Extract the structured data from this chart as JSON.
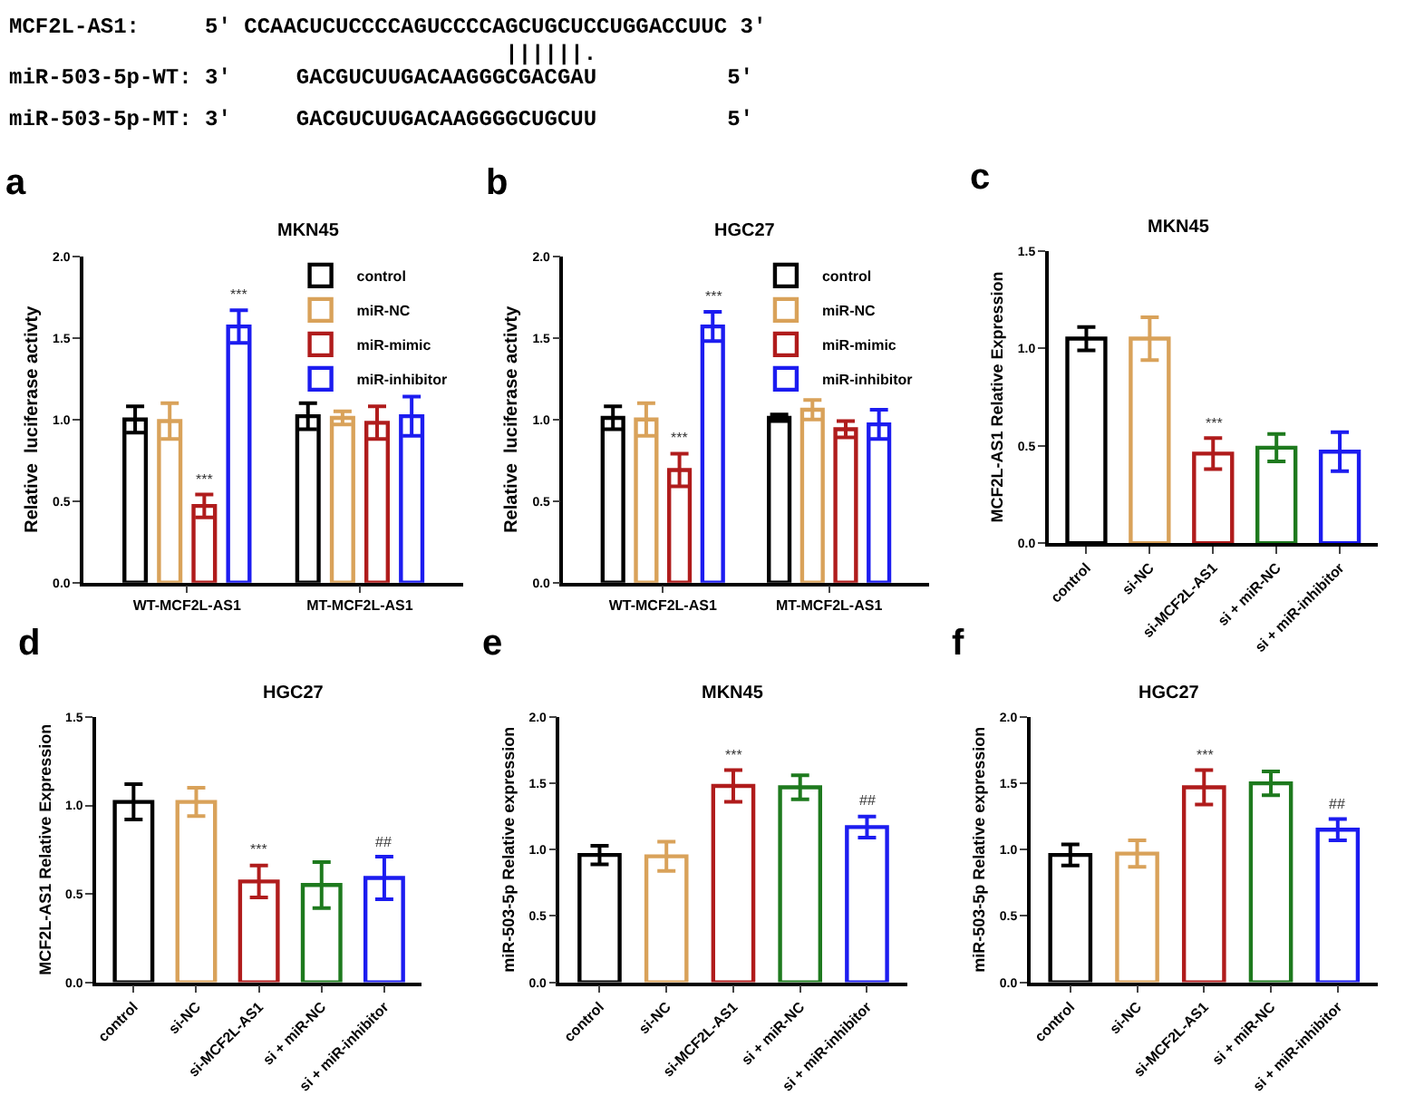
{
  "chart_data": [
    {
      "type": "other",
      "annotations": [
        "MCF2L-AS1:     5' CCAACUCUCCCCAGUCCCCAGCUGCUCCUGGACCUUC 3'",
        "                                      ||||||.",
        "miR-503-5p-WT: 3'     GACGUCUUGACAAGGGCGACGAU          5'",
        "miR-503-5p-MT: 3'     GACGUCUUGACAAGGGGCUGCUU          5'"
      ]
    },
    {
      "type": "bar",
      "title": "MKN45",
      "ylabel": "Relative  luciferase activty",
      "annotations": [
        "a"
      ],
      "categories": [
        "WT-MCF2L-AS1",
        "MT-MCF2L-AS1"
      ],
      "ylim": [
        0,
        2
      ],
      "yticks": [
        {
          "value": 0,
          "label": "0.0"
        },
        {
          "value": 0.5,
          "label": "0.5"
        },
        {
          "value": 1,
          "label": "1.0"
        },
        {
          "value": 1.5,
          "label": "1.5"
        },
        {
          "value": 2,
          "label": "2.0"
        }
      ],
      "legend": "top right",
      "series": [
        {
          "name": "control",
          "color": "#000000",
          "values": [
            1.0,
            1.02
          ],
          "errors": [
            0.08,
            0.08
          ],
          "value_labels": [
            null,
            null
          ]
        },
        {
          "name": "miR-NC",
          "color": "#d9a25a",
          "values": [
            0.99,
            1.01
          ],
          "errors": [
            0.11,
            0.04
          ],
          "value_labels": [
            null,
            null
          ]
        },
        {
          "name": "miR-mimic",
          "color": "#b01c1c",
          "values": [
            0.47,
            0.98
          ],
          "errors": [
            0.07,
            0.1
          ],
          "value_labels": [
            "***",
            null
          ]
        },
        {
          "name": "miR-inhibitor",
          "color": "#1c1cf0",
          "values": [
            1.57,
            1.02
          ],
          "errors": [
            0.1,
            0.12
          ],
          "value_labels": [
            "***",
            null
          ]
        }
      ]
    },
    {
      "type": "bar",
      "title": "HGC27",
      "ylabel": "Relative  luciferase activty",
      "annotations": [
        "b"
      ],
      "categories": [
        "WT-MCF2L-AS1",
        "MT-MCF2L-AS1"
      ],
      "ylim": [
        0,
        2
      ],
      "yticks": [
        {
          "value": 0,
          "label": "0.0"
        },
        {
          "value": 0.5,
          "label": "0.5"
        },
        {
          "value": 1,
          "label": "1.0"
        },
        {
          "value": 1.5,
          "label": "1.5"
        },
        {
          "value": 2,
          "label": "2.0"
        }
      ],
      "legend": "top right",
      "series": [
        {
          "name": "control",
          "color": "#000000",
          "values": [
            1.01,
            1.01
          ],
          "errors": [
            0.07,
            0.02
          ],
          "value_labels": [
            null,
            null
          ]
        },
        {
          "name": "miR-NC",
          "color": "#d9a25a",
          "values": [
            1.0,
            1.06
          ],
          "errors": [
            0.1,
            0.06
          ],
          "value_labels": [
            null,
            null
          ]
        },
        {
          "name": "miR-mimic",
          "color": "#b01c1c",
          "values": [
            0.69,
            0.94
          ],
          "errors": [
            0.1,
            0.05
          ],
          "value_labels": [
            "***",
            null
          ]
        },
        {
          "name": "miR-inhibitor",
          "color": "#1c1cf0",
          "values": [
            1.57,
            0.97
          ],
          "errors": [
            0.09,
            0.09
          ],
          "value_labels": [
            "***",
            null
          ]
        }
      ]
    },
    {
      "type": "bar",
      "title": "MKN45",
      "ylabel": "MCF2L-AS1 Relative Expression",
      "annotations": [
        "c"
      ],
      "categories": [
        "control",
        "si-NC",
        "si-MCF2L-AS1",
        "si + miR-NC",
        "si + miR-inhibitor"
      ],
      "ylim": [
        0,
        1.5
      ],
      "yticks": [
        {
          "value": 0,
          "label": "0.0"
        },
        {
          "value": 0.5,
          "label": "0.5"
        },
        {
          "value": 1,
          "label": "1.0"
        },
        {
          "value": 1.5,
          "label": "1.5"
        }
      ],
      "values": [
        1.05,
        1.05,
        0.46,
        0.49,
        0.47
      ],
      "errors": [
        0.06,
        0.11,
        0.08,
        0.07,
        0.1
      ],
      "colors": [
        "#000000",
        "#d9a25a",
        "#b01c1c",
        "#1e7a1e",
        "#1c1cf0"
      ],
      "value_labels": [
        null,
        null,
        "***",
        null,
        null
      ]
    },
    {
      "type": "bar",
      "title": "HGC27",
      "ylabel": "MCF2L-AS1 Relative Expression",
      "annotations": [
        "d"
      ],
      "categories": [
        "control",
        "si-NC",
        "si-MCF2L-AS1",
        "si + miR-NC",
        "si + miR-inhibitor"
      ],
      "ylim": [
        0,
        1.5
      ],
      "yticks": [
        {
          "value": 0,
          "label": "0.0"
        },
        {
          "value": 0.5,
          "label": "0.5"
        },
        {
          "value": 1,
          "label": "1.0"
        },
        {
          "value": 1.5,
          "label": "1.5"
        }
      ],
      "values": [
        1.02,
        1.02,
        0.57,
        0.55,
        0.59
      ],
      "errors": [
        0.1,
        0.08,
        0.09,
        0.13,
        0.12
      ],
      "colors": [
        "#000000",
        "#d9a25a",
        "#b01c1c",
        "#1e7a1e",
        "#1c1cf0"
      ],
      "value_labels": [
        null,
        null,
        "***",
        null,
        "##"
      ]
    },
    {
      "type": "bar",
      "title": "MKN45",
      "ylabel": "miR-503-5p Relative expression",
      "annotations": [
        "e"
      ],
      "categories": [
        "control",
        "si-NC",
        "si-MCF2L-AS1",
        "si + miR-NC",
        "si + miR-inhibitor"
      ],
      "ylim": [
        0,
        2
      ],
      "yticks": [
        {
          "value": 0,
          "label": "0.0"
        },
        {
          "value": 0.5,
          "label": "0.5"
        },
        {
          "value": 1,
          "label": "1.0"
        },
        {
          "value": 1.5,
          "label": "1.5"
        },
        {
          "value": 2,
          "label": "2.0"
        }
      ],
      "values": [
        0.96,
        0.95,
        1.48,
        1.47,
        1.17
      ],
      "errors": [
        0.07,
        0.11,
        0.12,
        0.09,
        0.08
      ],
      "colors": [
        "#000000",
        "#d9a25a",
        "#b01c1c",
        "#1e7a1e",
        "#1c1cf0"
      ],
      "value_labels": [
        null,
        null,
        "***",
        null,
        "##"
      ]
    },
    {
      "type": "bar",
      "title": "HGC27",
      "ylabel": "miR-503-5p Relative expression",
      "annotations": [
        "f"
      ],
      "categories": [
        "control",
        "si-NC",
        "si-MCF2L-AS1",
        "si + miR-NC",
        "si + miR-inhibitor"
      ],
      "ylim": [
        0,
        2
      ],
      "yticks": [
        {
          "value": 0,
          "label": "0.0"
        },
        {
          "value": 0.5,
          "label": "0.5"
        },
        {
          "value": 1,
          "label": "1.0"
        },
        {
          "value": 1.5,
          "label": "1.5"
        },
        {
          "value": 2,
          "label": "2.0"
        }
      ],
      "values": [
        0.96,
        0.97,
        1.47,
        1.5,
        1.15
      ],
      "errors": [
        0.08,
        0.1,
        0.13,
        0.09,
        0.08
      ],
      "colors": [
        "#000000",
        "#d9a25a",
        "#b01c1c",
        "#1e7a1e",
        "#1c1cf0"
      ],
      "value_labels": [
        null,
        null,
        "***",
        null,
        "##"
      ]
    }
  ]
}
